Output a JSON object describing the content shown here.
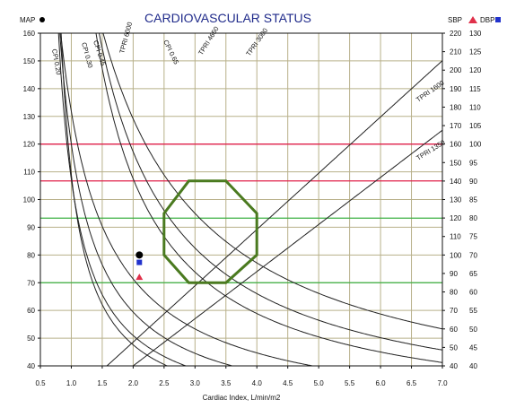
{
  "chart_data": {
    "type": "line",
    "title": "CARDIOVASCULAR STATUS",
    "xlabel": "Cardiac Index, L/min/m2",
    "xlim": [
      0.5,
      7.0
    ],
    "x_ticks": [
      "0.5",
      "1.0",
      "1.5",
      "2.0",
      "2.5",
      "3.0",
      "3.5",
      "4.0",
      "4.5",
      "5.0",
      "5.5",
      "6.0",
      "6.5",
      "7.0"
    ],
    "left_axis": {
      "label": "MAP",
      "ylim": [
        40,
        160
      ],
      "ticks": [
        "40",
        "50",
        "60",
        "70",
        "80",
        "90",
        "100",
        "110",
        "120",
        "130",
        "140",
        "150",
        "160"
      ]
    },
    "right_axes": [
      {
        "label": "SBP",
        "ylim": [
          40,
          220
        ],
        "ticks": [
          "40",
          "50",
          "60",
          "70",
          "80",
          "90",
          "100",
          "110",
          "120",
          "130",
          "140",
          "150",
          "160",
          "170",
          "180",
          "190",
          "200",
          "210",
          "220"
        ]
      },
      {
        "label": "DBP",
        "ylim": [
          40,
          130
        ],
        "ticks": [
          "40",
          "45",
          "50",
          "55",
          "60",
          "65",
          "70",
          "75",
          "80",
          "85",
          "90",
          "95",
          "100",
          "105",
          "110",
          "115",
          "120",
          "125",
          "130"
        ]
      }
    ],
    "grid": true,
    "reference_lines": [
      {
        "axis": "MAP",
        "y": 120,
        "color": "#e0204a"
      },
      {
        "axis": "MAP",
        "y": 106.7,
        "color": "#e0204a"
      },
      {
        "axis": "MAP",
        "y": 93.3,
        "color": "#3cb043"
      },
      {
        "axis": "MAP",
        "y": 70,
        "color": "#3cb043"
      }
    ],
    "cpi_curves": [
      {
        "label": "CPI 0.20",
        "k": 0.0454
      },
      {
        "label": "CPI 0.30",
        "k": 0.068
      },
      {
        "label": "CPI 0.45",
        "k": 0.102
      },
      {
        "label": "CPI 0.65",
        "k": 0.148
      }
    ],
    "tpri_curves": [
      {
        "label": "TPRI 6000",
        "r": 75
      },
      {
        "label": "TPRI 4650",
        "r": 58
      },
      {
        "label": "TPRI 3000",
        "r": 37.5
      },
      {
        "label": "TPRI 1600",
        "r": 20
      },
      {
        "label": "TPRI 1350",
        "r": 16.9
      }
    ],
    "target_region": {
      "color": "#4a7a1f",
      "polygon": [
        [
          2.9,
          106.7
        ],
        [
          3.5,
          106.7
        ],
        [
          4.0,
          95
        ],
        [
          4.0,
          80
        ],
        [
          3.5,
          70
        ],
        [
          2.9,
          70
        ],
        [
          2.5,
          80
        ],
        [
          2.5,
          95
        ]
      ]
    },
    "patient_point": {
      "ci": 2.1,
      "map": 80,
      "sbp": 88,
      "dbp": 68,
      "map_color": "#000000",
      "sbp_color": "#e0304a",
      "dbp_color": "#2233cc"
    },
    "legend": {
      "map_label": "MAP",
      "sbp_label": "SBP",
      "dbp_label": "DBP"
    }
  }
}
